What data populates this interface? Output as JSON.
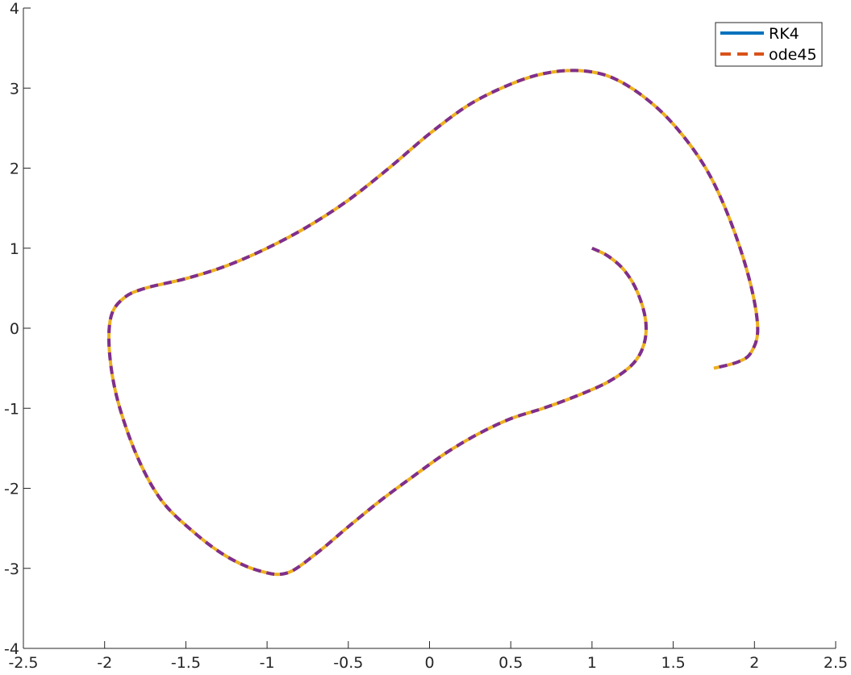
{
  "chart_data": {
    "type": "line",
    "title": "",
    "xlabel": "",
    "ylabel": "",
    "xlim": [
      -2.5,
      2.5
    ],
    "ylim": [
      -4,
      4
    ],
    "x_ticks": [
      -2.5,
      -2,
      -1.5,
      -1,
      -0.5,
      0,
      0.5,
      1,
      1.5,
      2,
      2.5
    ],
    "x_tick_labels": [
      "-2.5",
      "-2",
      "-1.5",
      "-1",
      "-0.5",
      "0",
      "0.5",
      "1",
      "1.5",
      "2",
      "2.5"
    ],
    "y_ticks": [
      -4,
      -3,
      -2,
      -1,
      0,
      1,
      2,
      3,
      4
    ],
    "y_tick_labels": [
      "-4",
      "-3",
      "-2",
      "-1",
      "0",
      "1",
      "2",
      "3",
      "4"
    ],
    "grid": false,
    "box": false,
    "legend_location": "top-right",
    "series": [
      {
        "name": "RK4",
        "color": "#0072BD",
        "style": "solid",
        "in_legend": true,
        "visible": false,
        "points": "trajectory"
      },
      {
        "name": "ode45",
        "color": "#D95319",
        "style": "dashed",
        "in_legend": true,
        "visible": false,
        "points": "trajectory"
      },
      {
        "color": "#EDB120",
        "style": "solid",
        "in_legend": false,
        "visible": true,
        "points": "trajectory"
      },
      {
        "color": "#7E2F8E",
        "style": "dashed",
        "in_legend": false,
        "visible": true,
        "points": "trajectory"
      }
    ],
    "trajectory": [
      [
        1.0,
        1.0
      ],
      [
        1.1,
        0.9
      ],
      [
        1.2,
        0.72
      ],
      [
        1.28,
        0.45
      ],
      [
        1.33,
        0.1
      ],
      [
        1.32,
        -0.2
      ],
      [
        1.25,
        -0.45
      ],
      [
        1.1,
        -0.67
      ],
      [
        0.9,
        -0.85
      ],
      [
        0.7,
        -1.0
      ],
      [
        0.5,
        -1.13
      ],
      [
        0.3,
        -1.32
      ],
      [
        0.1,
        -1.56
      ],
      [
        -0.1,
        -1.85
      ],
      [
        -0.3,
        -2.15
      ],
      [
        -0.5,
        -2.48
      ],
      [
        -0.7,
        -2.82
      ],
      [
        -0.88,
        -3.06
      ],
      [
        -1.05,
        -3.03
      ],
      [
        -1.25,
        -2.85
      ],
      [
        -1.45,
        -2.55
      ],
      [
        -1.65,
        -2.15
      ],
      [
        -1.8,
        -1.6
      ],
      [
        -1.92,
        -0.9
      ],
      [
        -1.97,
        -0.3
      ],
      [
        -1.96,
        0.15
      ],
      [
        -1.88,
        0.38
      ],
      [
        -1.75,
        0.5
      ],
      [
        -1.5,
        0.62
      ],
      [
        -1.25,
        0.78
      ],
      [
        -1.0,
        1.0
      ],
      [
        -0.75,
        1.27
      ],
      [
        -0.5,
        1.6
      ],
      [
        -0.25,
        2.0
      ],
      [
        0.0,
        2.43
      ],
      [
        0.25,
        2.8
      ],
      [
        0.5,
        3.05
      ],
      [
        0.7,
        3.18
      ],
      [
        0.9,
        3.22
      ],
      [
        1.1,
        3.15
      ],
      [
        1.3,
        2.92
      ],
      [
        1.5,
        2.55
      ],
      [
        1.7,
        2.0
      ],
      [
        1.85,
        1.35
      ],
      [
        1.97,
        0.6
      ],
      [
        2.02,
        0.0
      ],
      [
        1.98,
        -0.3
      ],
      [
        1.9,
        -0.42
      ],
      [
        1.75,
        -0.5
      ]
    ]
  }
}
